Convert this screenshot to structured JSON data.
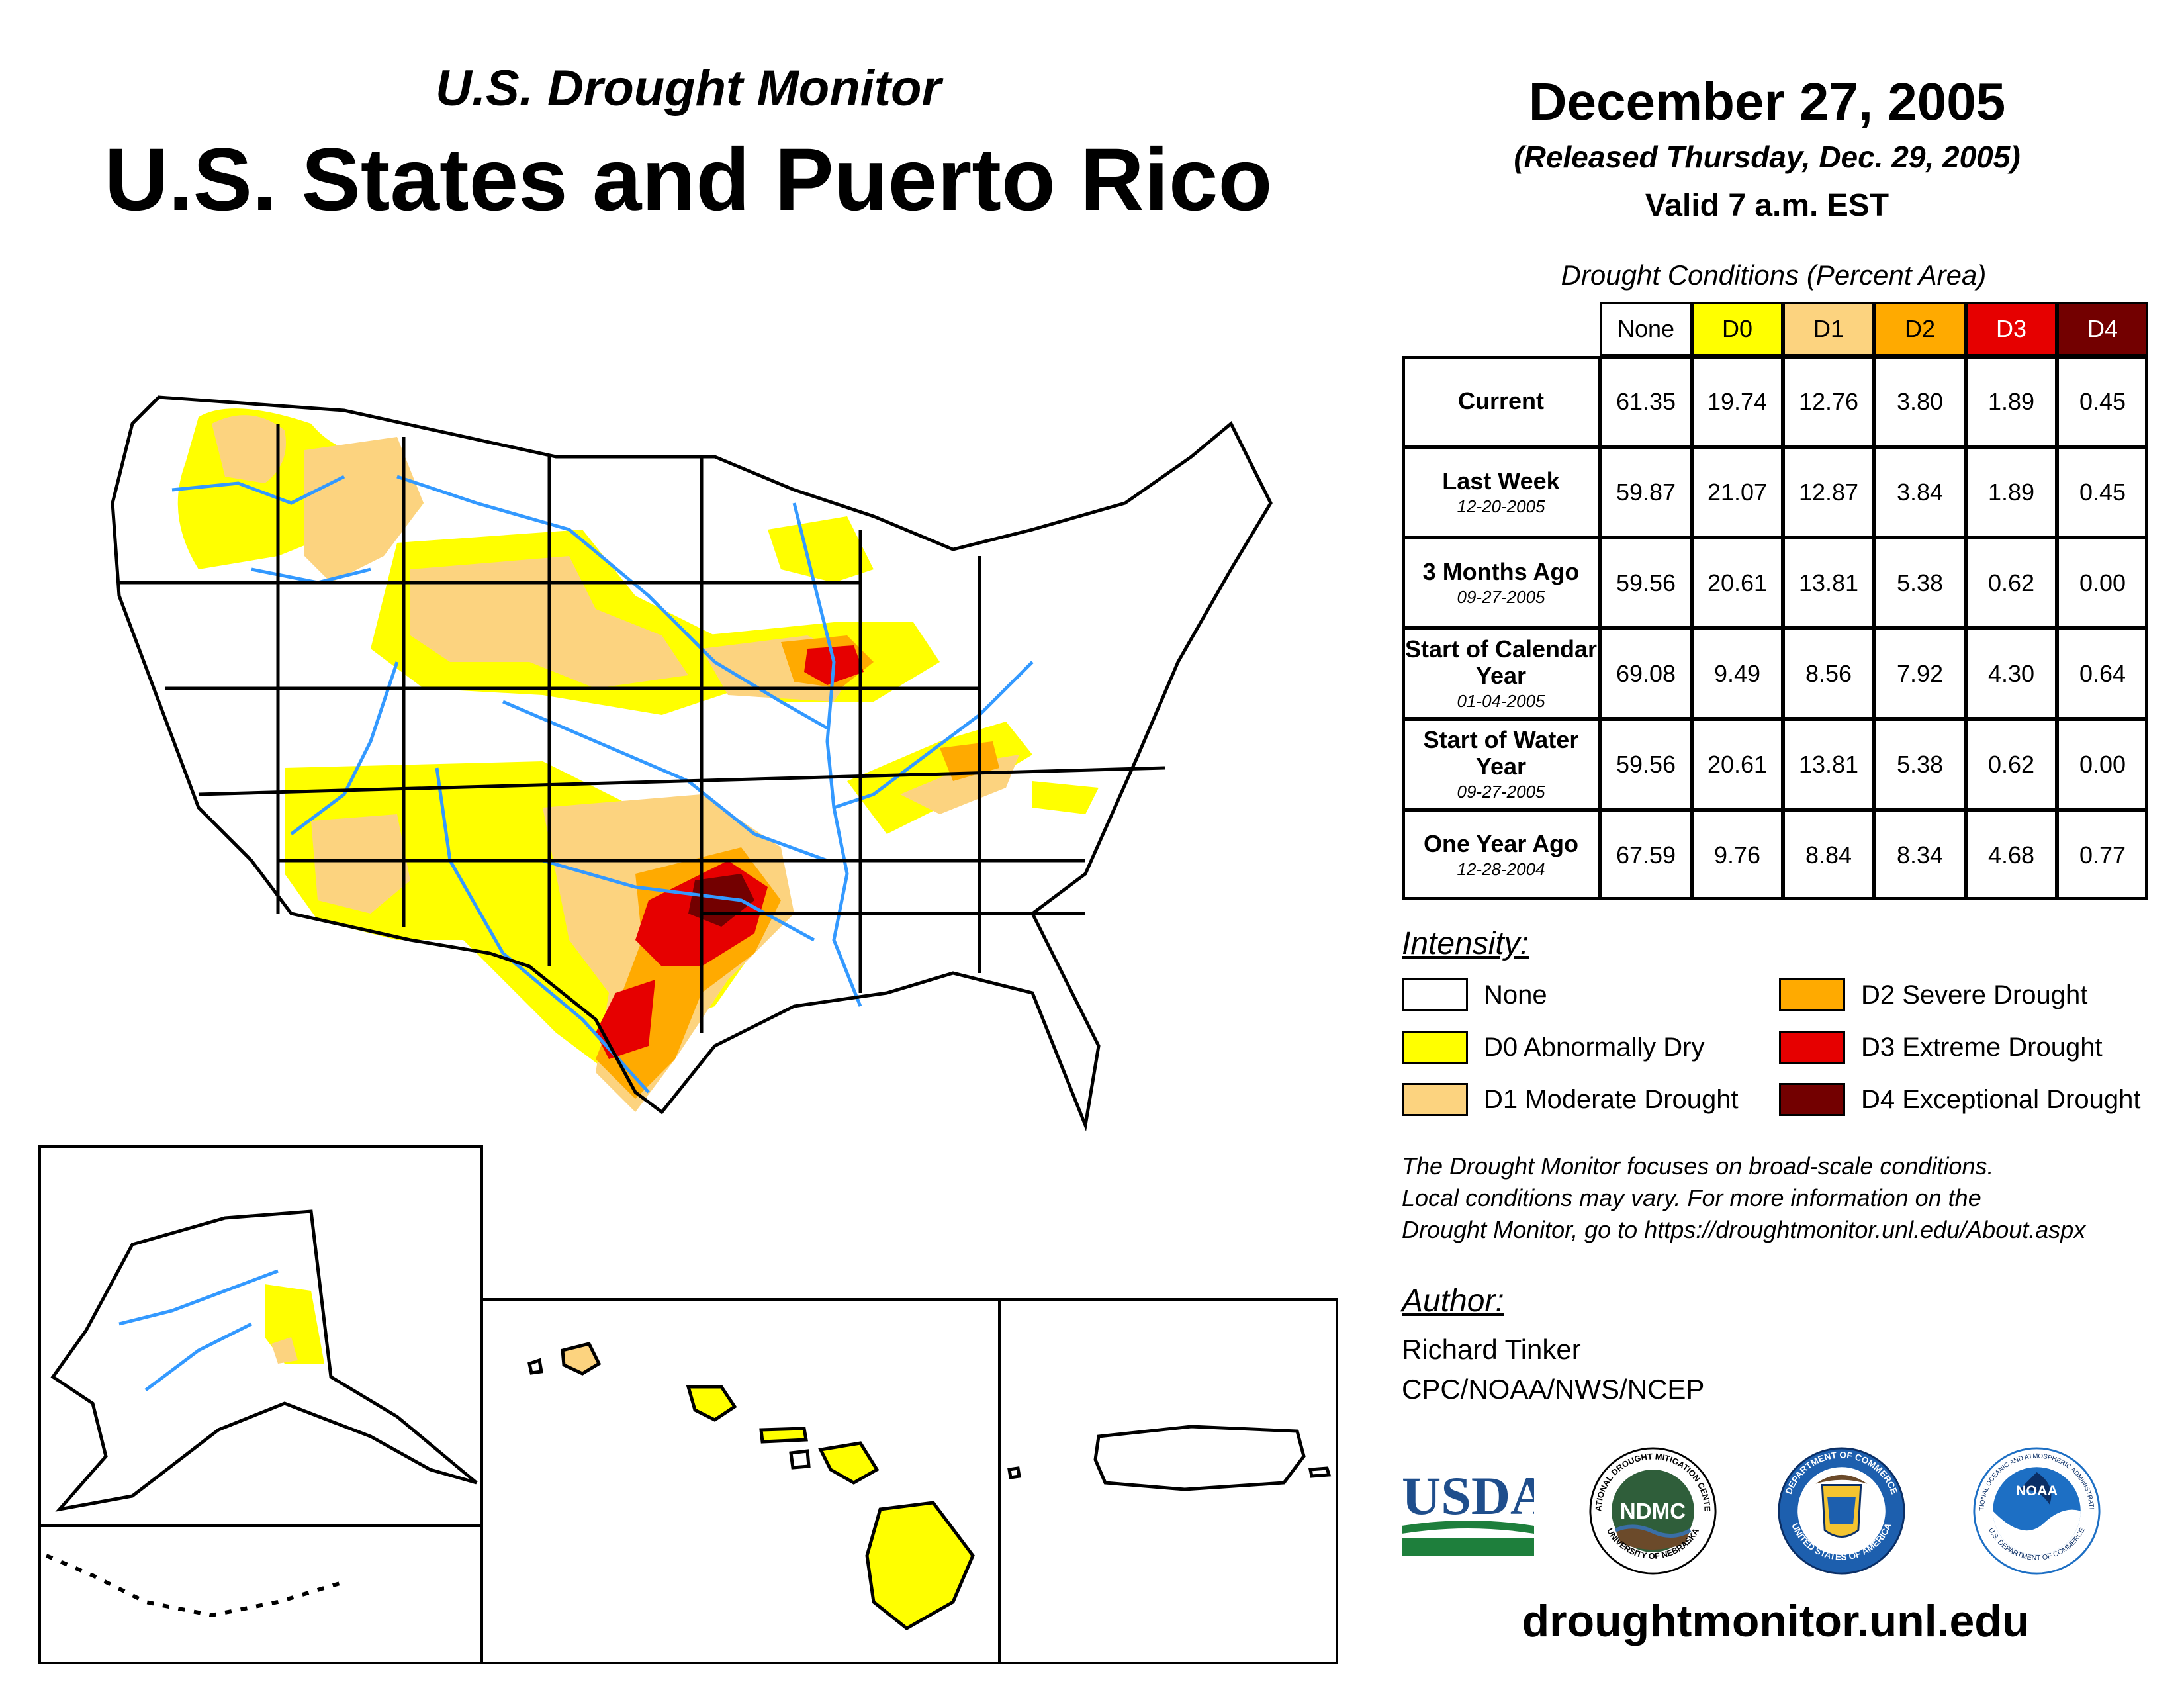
{
  "header": {
    "subtitle": "U.S. Drought Monitor",
    "title": "U.S. States and Puerto Rico",
    "date": "December 27, 2005",
    "released": "(Released Thursday, Dec. 29, 2005)",
    "valid": "Valid 7 a.m. EST"
  },
  "table": {
    "title": "Drought Conditions (Percent Area)",
    "columns": [
      "None",
      "D0",
      "D1",
      "D2",
      "D3",
      "D4"
    ],
    "column_colors": [
      "#ffffff",
      "#ffff00",
      "#fcd37f",
      "#ffaa00",
      "#e60000",
      "#730000"
    ],
    "rows": [
      {
        "label": "Current",
        "date": "",
        "values": [
          "61.35",
          "19.74",
          "12.76",
          "3.80",
          "1.89",
          "0.45"
        ]
      },
      {
        "label": "Last Week",
        "date": "12-20-2005",
        "values": [
          "59.87",
          "21.07",
          "12.87",
          "3.84",
          "1.89",
          "0.45"
        ]
      },
      {
        "label": "3 Months Ago",
        "date": "09-27-2005",
        "values": [
          "59.56",
          "20.61",
          "13.81",
          "5.38",
          "0.62",
          "0.00"
        ]
      },
      {
        "label": "Start of Calendar Year",
        "date": "01-04-2005",
        "values": [
          "69.08",
          "9.49",
          "8.56",
          "7.92",
          "4.30",
          "0.64"
        ]
      },
      {
        "label": "Start of Water Year",
        "date": "09-27-2005",
        "values": [
          "59.56",
          "20.61",
          "13.81",
          "5.38",
          "0.62",
          "0.00"
        ]
      },
      {
        "label": "One Year Ago",
        "date": "12-28-2004",
        "values": [
          "67.59",
          "9.76",
          "8.84",
          "8.34",
          "4.68",
          "0.77"
        ]
      }
    ]
  },
  "legend": {
    "title": "Intensity:",
    "items": [
      {
        "label": "None",
        "color": "#ffffff"
      },
      {
        "label": "D0 Abnormally Dry",
        "color": "#ffff00"
      },
      {
        "label": "D1 Moderate Drought",
        "color": "#fcd37f"
      },
      {
        "label": "D2 Severe Drought",
        "color": "#ffaa00"
      },
      {
        "label": "D3 Extreme Drought",
        "color": "#e60000"
      },
      {
        "label": "D4 Exceptional Drought",
        "color": "#730000"
      }
    ]
  },
  "disclaimer": [
    "The Drought Monitor focuses on broad-scale conditions.",
    "Local conditions may vary. For more information on the",
    "Drought Monitor, go to https://droughtmonitor.unl.edu/About.aspx"
  ],
  "author": {
    "title": "Author:",
    "name": "Richard Tinker",
    "org": "CPC/NOAA/NWS/NCEP"
  },
  "logos": {
    "usda": "USDA",
    "ndmc": "NDMC",
    "ndmc_ring_top": "NATIONAL DROUGHT MITIGATION CENTER",
    "ndmc_ring_bottom": "UNIVERSITY OF NEBRASKA",
    "commerce_ring_top": "DEPARTMENT OF COMMERCE",
    "commerce_ring_bottom": "UNITED STATES OF AMERICA",
    "noaa": "NOAA",
    "noaa_ring_top": "NATIONAL OCEANIC AND ATMOSPHERIC ADMINISTRATION",
    "noaa_ring_bottom": "U.S. DEPARTMENT OF COMMERCE"
  },
  "website": "droughtmonitor.unl.edu",
  "colors": {
    "none": "#ffffff",
    "d0": "#ffff00",
    "d1": "#fcd37f",
    "d2": "#ffaa00",
    "d3": "#e60000",
    "d4": "#730000",
    "river": "#3399ff",
    "usda_blue": "#1f4e8c",
    "usda_green": "#1e7f3c",
    "noaa_blue": "#1d6fc4"
  }
}
